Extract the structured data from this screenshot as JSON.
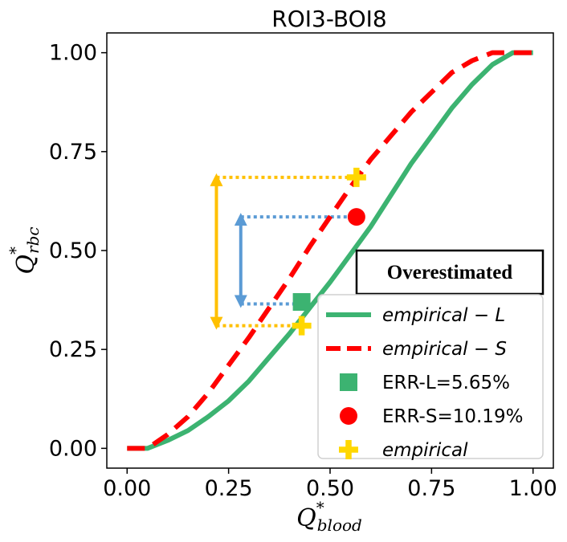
{
  "chart_data": {
    "type": "line",
    "title": "ROI3-BOI8",
    "xlabel": {
      "main": "Q",
      "sup": "*",
      "sub": "blood"
    },
    "ylabel": {
      "main": "Q",
      "sup": "*",
      "sub": "rbc"
    },
    "xlim": [
      -0.05,
      1.05
    ],
    "ylim": [
      -0.05,
      1.05
    ],
    "xticks": [
      0.0,
      0.25,
      0.5,
      0.75,
      1.0
    ],
    "yticks": [
      0.0,
      0.25,
      0.5,
      0.75,
      1.0
    ],
    "xtick_labels": [
      "0.00",
      "0.25",
      "0.50",
      "0.75",
      "1.00"
    ],
    "ytick_labels": [
      "0.00",
      "0.25",
      "0.50",
      "0.75",
      "1.00"
    ],
    "grid": false,
    "legend_position": "lower-right",
    "series": [
      {
        "name": "empirical − L",
        "style": "solid",
        "color": "#3cb371",
        "x": [
          0.0,
          0.05,
          0.1,
          0.15,
          0.2,
          0.25,
          0.3,
          0.35,
          0.4,
          0.45,
          0.5,
          0.55,
          0.6,
          0.65,
          0.7,
          0.75,
          0.8,
          0.85,
          0.9,
          0.95,
          1.0
        ],
        "y": [
          0.0,
          0.0,
          0.02,
          0.045,
          0.08,
          0.12,
          0.17,
          0.23,
          0.29,
          0.355,
          0.42,
          0.49,
          0.56,
          0.64,
          0.72,
          0.79,
          0.86,
          0.92,
          0.97,
          1.0,
          1.0
        ]
      },
      {
        "name": "empirical − S",
        "style": "dashed",
        "color": "#ff0000",
        "x": [
          0.0,
          0.05,
          0.1,
          0.15,
          0.2,
          0.25,
          0.3,
          0.35,
          0.4,
          0.45,
          0.5,
          0.55,
          0.6,
          0.65,
          0.7,
          0.75,
          0.8,
          0.85,
          0.9,
          0.95,
          1.0
        ],
        "y": [
          0.0,
          0.0,
          0.035,
          0.08,
          0.14,
          0.21,
          0.28,
          0.355,
          0.43,
          0.51,
          0.585,
          0.66,
          0.73,
          0.79,
          0.85,
          0.9,
          0.95,
          0.98,
          1.0,
          1.0,
          1.0
        ]
      }
    ],
    "markers": [
      {
        "name": "ERR-L=5.65%",
        "shape": "square",
        "color": "#3cb371",
        "x": 0.43,
        "y": 0.37
      },
      {
        "name": "ERR-S=10.19%",
        "shape": "circle",
        "color": "#ff0000",
        "x": 0.565,
        "y": 0.585
      },
      {
        "name": "empirical",
        "shape": "plus",
        "color": "#ffd700",
        "points": [
          {
            "x": 0.43,
            "y": 0.31
          },
          {
            "x": 0.565,
            "y": 0.685
          }
        ]
      }
    ],
    "legend": [
      {
        "label": "empirical − L",
        "kind": "line",
        "color": "#3cb371",
        "style": "solid",
        "italic": true
      },
      {
        "label": "empirical − S",
        "kind": "line",
        "color": "#ff0000",
        "style": "dashed",
        "italic": true
      },
      {
        "label": "ERR-L=5.65%",
        "kind": "square",
        "color": "#3cb371",
        "italic": false
      },
      {
        "label": "ERR-S=10.19%",
        "kind": "circle",
        "color": "#ff0000",
        "italic": false
      },
      {
        "label": "empirical",
        "kind": "plus",
        "color": "#ffd700",
        "italic": true
      }
    ],
    "annotations": {
      "box_text": "Overestimated",
      "orange_bracket": {
        "color": "#ffc000",
        "x": 0.22,
        "y_top": 0.685,
        "y_bottom": 0.31,
        "x_top_end": 0.565,
        "x_bottom_end": 0.43
      },
      "blue_bracket": {
        "color": "#5b9bd5",
        "x": 0.28,
        "y_top": 0.585,
        "y_bottom": 0.365,
        "x_top_end": 0.565,
        "x_bottom_end": 0.43
      }
    }
  }
}
